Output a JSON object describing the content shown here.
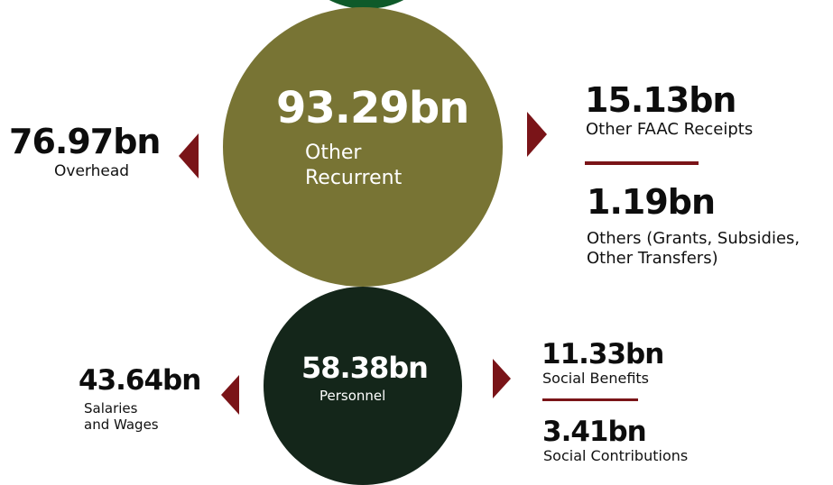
{
  "colors": {
    "top_circle": "#0f5a2a",
    "other_recurrent_circle": "#787434",
    "personnel_circle": "#14261a",
    "accent": "#7a1418"
  },
  "icons": {
    "arrow": "triangle-arrow"
  },
  "other_recurrent": {
    "value": "93.29bn",
    "label_line1": "Other",
    "label_line2": "Recurrent",
    "overhead": {
      "value": "76.97bn",
      "label": "Overhead"
    },
    "faac": {
      "value": "15.13bn",
      "label": "Other FAAC Receipts"
    },
    "others": {
      "value": "1.19bn",
      "label_line1": "Others (Grants, Subsidies,",
      "label_line2": "Other Transfers)"
    }
  },
  "personnel": {
    "value": "58.38bn",
    "label": "Personnel",
    "salaries": {
      "value": "43.64bn",
      "label_line1": "Salaries",
      "label_line2": "and Wages"
    },
    "social_benefits": {
      "value": "11.33bn",
      "label": "Social Benefits"
    },
    "social_contributions": {
      "value": "3.41bn",
      "label": "Social Contributions"
    }
  }
}
